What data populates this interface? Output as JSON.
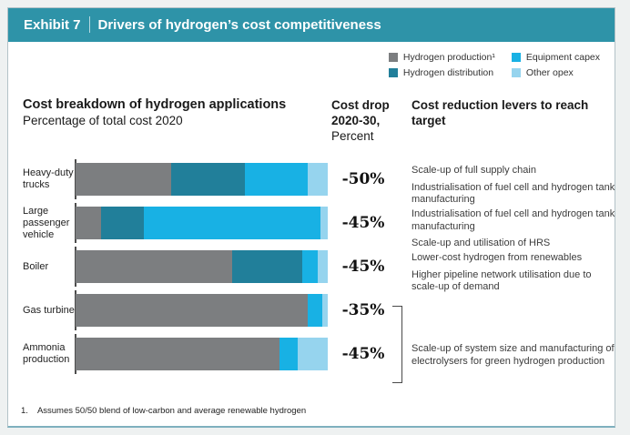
{
  "header": {
    "exhibit": "Exhibit 7",
    "title": "Drivers of hydrogen’s cost competitiveness"
  },
  "legend": [
    {
      "label": "Hydrogen production¹",
      "color": "#7c7e80"
    },
    {
      "label": "Hydrogen distribution",
      "color": "#217f9a"
    },
    {
      "label": "Equipment capex",
      "color": "#18b1e4"
    },
    {
      "label": "Other opex",
      "color": "#96d4ee"
    }
  ],
  "columns": {
    "chart_title": "Cost breakdown of hydrogen applications",
    "chart_subtitle": "Percentage of total cost 2020",
    "drop_line1": "Cost drop",
    "drop_line2": "2020-30,",
    "drop_line3": "Percent",
    "levers_title": "Cost reduction levers to reach target"
  },
  "chart_data": {
    "type": "bar",
    "orientation": "horizontal",
    "stacked": true,
    "title": "Cost breakdown of hydrogen applications",
    "subtitle": "Percentage of total cost 2020",
    "xlim": [
      0,
      100
    ],
    "grid": false,
    "legend_position": "top-right",
    "categories": [
      "Heavy-duty trucks",
      "Large passenger vehicle",
      "Boiler",
      "Gas turbine",
      "Ammonia production"
    ],
    "series": [
      {
        "name": "Hydrogen production",
        "color": "#7c7e80",
        "values": [
          38,
          10,
          62,
          92,
          81
        ]
      },
      {
        "name": "Hydrogen distribution",
        "color": "#217f9a",
        "values": [
          29,
          17,
          28,
          0,
          0
        ]
      },
      {
        "name": "Equipment capex",
        "color": "#18b1e4",
        "values": [
          25,
          70,
          6,
          6,
          7
        ]
      },
      {
        "name": "Other opex",
        "color": "#96d4ee",
        "values": [
          8,
          3,
          4,
          2,
          12
        ]
      }
    ]
  },
  "rows": [
    {
      "label": "Heavy-duty trucks",
      "drop": "-50%",
      "levers": [
        "Scale-up of full supply chain",
        "Industrialisation of fuel cell and hydrogen tank manufacturing"
      ]
    },
    {
      "label": "Large passenger vehicle",
      "drop": "-45%",
      "levers": [
        "Industrialisation of fuel cell and hydrogen tank manufacturing",
        "Scale-up and utilisation of HRS"
      ]
    },
    {
      "label": "Boiler",
      "drop": "-45%",
      "levers": [
        "Lower-cost hydrogen from renewables",
        "Higher pipeline network utilisation due to scale-up of demand"
      ]
    },
    {
      "label": "Gas turbine",
      "drop": "-35%",
      "levers": []
    },
    {
      "label": "Ammonia production",
      "drop": "-45%",
      "levers": []
    }
  ],
  "bracket": {
    "rows": [
      "Gas turbine",
      "Ammonia production"
    ],
    "lever": "Scale-up of system size and manufacturing of electrolysers for green hydrogen production"
  },
  "footnote": {
    "number": "1.",
    "text": "Assumes 50/50 blend of low-carbon and average renewable hydrogen"
  }
}
